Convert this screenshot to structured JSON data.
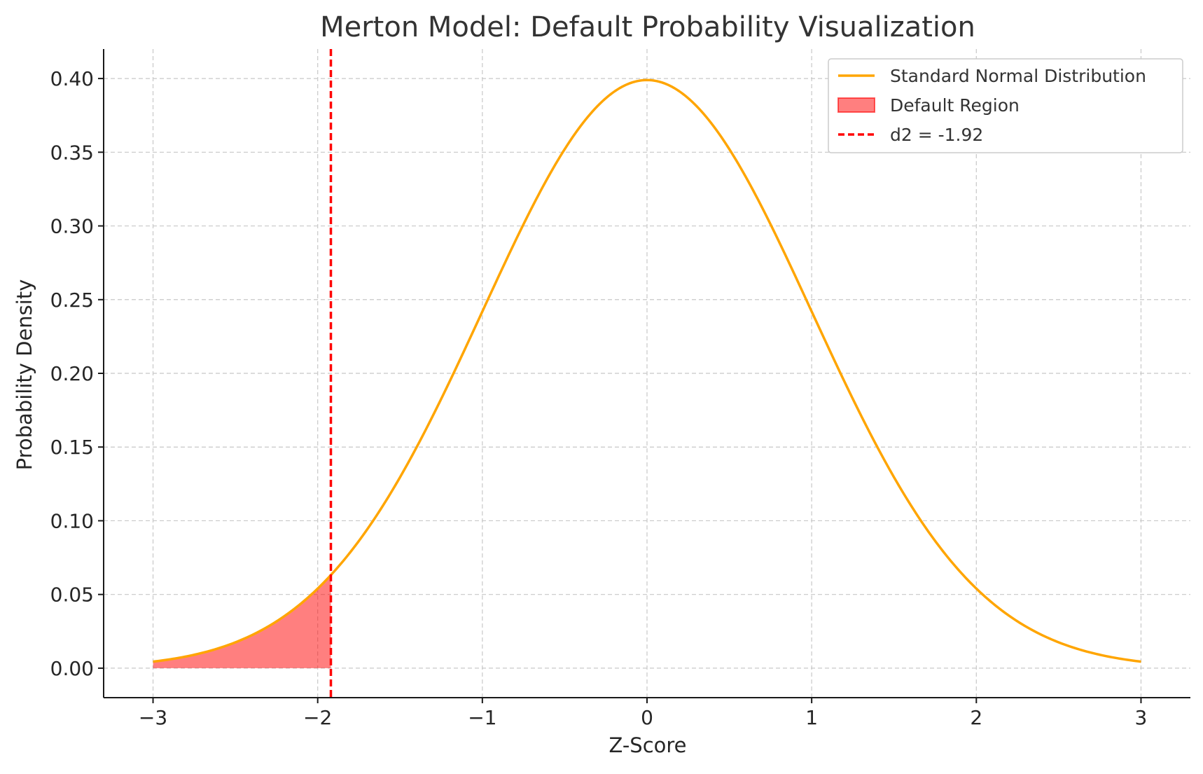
{
  "chart_data": {
    "type": "line",
    "title": "Merton Model: Default Probability Visualization",
    "xlabel": "Z-Score",
    "ylabel": "Probability Density",
    "xlim": [
      -3.3,
      3.3
    ],
    "ylim": [
      -0.02,
      0.42
    ],
    "x_ticks": [
      -3,
      -2,
      -1,
      0,
      1,
      2,
      3
    ],
    "x_tick_labels": [
      "−3",
      "−2",
      "−1",
      "0",
      "1",
      "2",
      "3"
    ],
    "y_ticks": [
      0.0,
      0.05,
      0.1,
      0.15,
      0.2,
      0.25,
      0.3,
      0.35,
      0.4
    ],
    "y_tick_labels": [
      "0.00",
      "0.05",
      "0.10",
      "0.15",
      "0.20",
      "0.25",
      "0.30",
      "0.35",
      "0.40"
    ],
    "grid": true,
    "legend_position": "top-right",
    "series": [
      {
        "name": "Standard Normal Distribution",
        "kind": "line",
        "color": "#FFA500",
        "x": [
          -3.0,
          -2.75,
          -2.5,
          -2.25,
          -2.0,
          -1.92,
          -1.75,
          -1.5,
          -1.25,
          -1.0,
          -0.75,
          -0.5,
          -0.25,
          0.0,
          0.25,
          0.5,
          0.75,
          1.0,
          1.25,
          1.5,
          1.75,
          2.0,
          2.25,
          2.5,
          2.75,
          3.0
        ],
        "y": [
          0.0044,
          0.0091,
          0.0175,
          0.0317,
          0.054,
          0.0632,
          0.0863,
          0.1295,
          0.1826,
          0.242,
          0.3011,
          0.3521,
          0.3867,
          0.3989,
          0.3867,
          0.3521,
          0.3011,
          0.242,
          0.1826,
          0.1295,
          0.0863,
          0.054,
          0.0317,
          0.0175,
          0.0091,
          0.0044
        ]
      },
      {
        "name": "Default Region",
        "kind": "area",
        "color": "#FF0000",
        "opacity": 0.5,
        "x": [
          -3.0,
          -2.75,
          -2.5,
          -2.25,
          -2.0,
          -1.92
        ],
        "y": [
          0.0044,
          0.0091,
          0.0175,
          0.0317,
          0.054,
          0.0632
        ]
      },
      {
        "name": "d2 = -1.92",
        "kind": "vline",
        "color": "#FF0000",
        "x": -1.92
      }
    ]
  }
}
